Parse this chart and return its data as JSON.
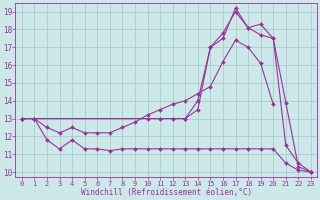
{
  "background_color": "#cce8e8",
  "grid_color": "#aacccc",
  "line_color": "#993399",
  "xlabel": "Windchill (Refroidissement éolien,°C)",
  "xlim": [
    0,
    23
  ],
  "ylim": [
    10,
    19
  ],
  "yticks": [
    10,
    11,
    12,
    13,
    14,
    15,
    16,
    17,
    18,
    19
  ],
  "xticks": [
    0,
    1,
    2,
    3,
    4,
    5,
    6,
    7,
    8,
    9,
    10,
    11,
    12,
    13,
    14,
    15,
    16,
    17,
    18,
    19,
    20,
    21,
    22,
    23
  ],
  "curves": [
    {
      "x": [
        0,
        1,
        2,
        3,
        4,
        5,
        6,
        7,
        8,
        9,
        10,
        11,
        12,
        13,
        14,
        15,
        16,
        17,
        18,
        19,
        20,
        21,
        22,
        23
      ],
      "y": [
        13.0,
        13.0,
        11.8,
        11.3,
        11.8,
        11.3,
        11.3,
        11.2,
        11.3,
        11.3,
        11.3,
        11.3,
        11.3,
        11.3,
        11.3,
        11.3,
        11.3,
        11.3,
        11.3,
        11.3,
        11.3,
        10.5,
        10.1,
        10.0
      ]
    },
    {
      "x": [
        0,
        1,
        2,
        3,
        4,
        5,
        6,
        7,
        8,
        9,
        10,
        11,
        12,
        13,
        14,
        15,
        16,
        17,
        18,
        19,
        20
      ],
      "y": [
        13.0,
        13.0,
        12.5,
        12.2,
        12.5,
        12.2,
        12.2,
        12.2,
        12.5,
        12.8,
        13.2,
        13.5,
        13.8,
        14.0,
        14.4,
        14.8,
        16.2,
        17.4,
        17.0,
        16.1,
        13.8
      ]
    },
    {
      "x": [
        0,
        1,
        10,
        11,
        12,
        13,
        14,
        15,
        16,
        17,
        18,
        19,
        20,
        21,
        22,
        23
      ],
      "y": [
        13.0,
        13.0,
        13.0,
        13.0,
        13.0,
        13.0,
        13.5,
        17.0,
        17.8,
        19.0,
        18.1,
        17.7,
        17.5,
        11.5,
        10.5,
        10.0
      ]
    },
    {
      "x": [
        0,
        1,
        13,
        14,
        15,
        16,
        17,
        18,
        19,
        20,
        21,
        22,
        23
      ],
      "y": [
        13.0,
        13.0,
        13.0,
        14.0,
        17.0,
        17.5,
        19.2,
        18.1,
        18.3,
        17.5,
        13.9,
        10.3,
        10.0
      ]
    }
  ]
}
